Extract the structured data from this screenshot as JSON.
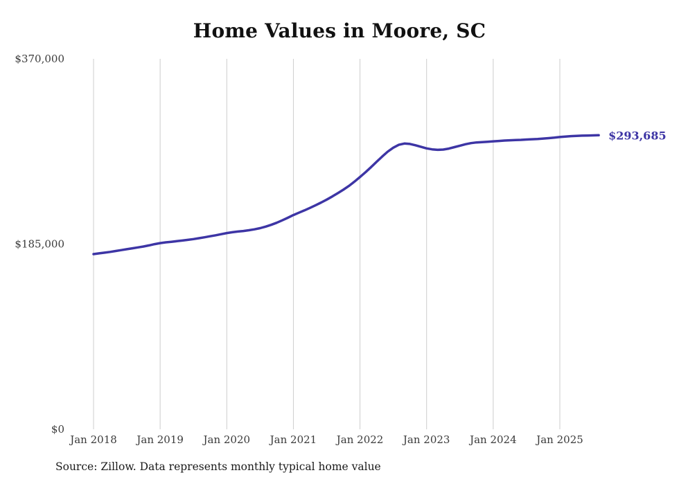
{
  "page": {
    "title": "Home Values in Moore, SC",
    "source_note": "Source: Zillow. Data represents monthly typical home value"
  },
  "chart_data": {
    "type": "line",
    "title": "Home Values in Moore, SC",
    "xlabel": "",
    "ylabel": "",
    "ylim": [
      0,
      370000
    ],
    "y_ticks": [
      0,
      185000,
      370000
    ],
    "y_tick_labels": [
      "$0",
      "$185,000",
      "$370,000"
    ],
    "x_tick_labels": [
      "Jan 2018",
      "Jan 2019",
      "Jan 2020",
      "Jan 2021",
      "Jan 2022",
      "Jan 2023",
      "Jan 2024",
      "Jan 2025"
    ],
    "x_start": "2018-01",
    "x_end": "2025-08",
    "grid": "vertical",
    "legend": "none",
    "line_color": "#3d35a5",
    "grid_color": "#cccccc",
    "end_label": "$293,685",
    "end_value": 293685,
    "series": [
      {
        "name": "Monthly typical home value",
        "values": [
          175000,
          175700,
          176400,
          177200,
          178100,
          179000,
          179900,
          180800,
          181700,
          182600,
          183700,
          184900,
          186000,
          186700,
          187300,
          187900,
          188500,
          189200,
          190000,
          190900,
          191800,
          192800,
          193800,
          194900,
          196000,
          196800,
          197500,
          198100,
          198800,
          199700,
          200900,
          202400,
          204200,
          206300,
          208700,
          211300,
          214000,
          216300,
          218700,
          221200,
          223800,
          226500,
          229400,
          232500,
          235800,
          239300,
          243000,
          247400,
          252000,
          256800,
          261900,
          267200,
          272400,
          277300,
          281300,
          284200,
          285400,
          285000,
          283700,
          282100,
          280600,
          279600,
          279100,
          279400,
          280400,
          281800,
          283300,
          284700,
          285800,
          286500,
          286900,
          287200,
          287600,
          288000,
          288400,
          288700,
          288900,
          289100,
          289400,
          289700,
          290000,
          290400,
          290800,
          291300,
          291900,
          292400,
          292800,
          293100,
          293300,
          293450,
          293600,
          293685
        ]
      }
    ]
  }
}
